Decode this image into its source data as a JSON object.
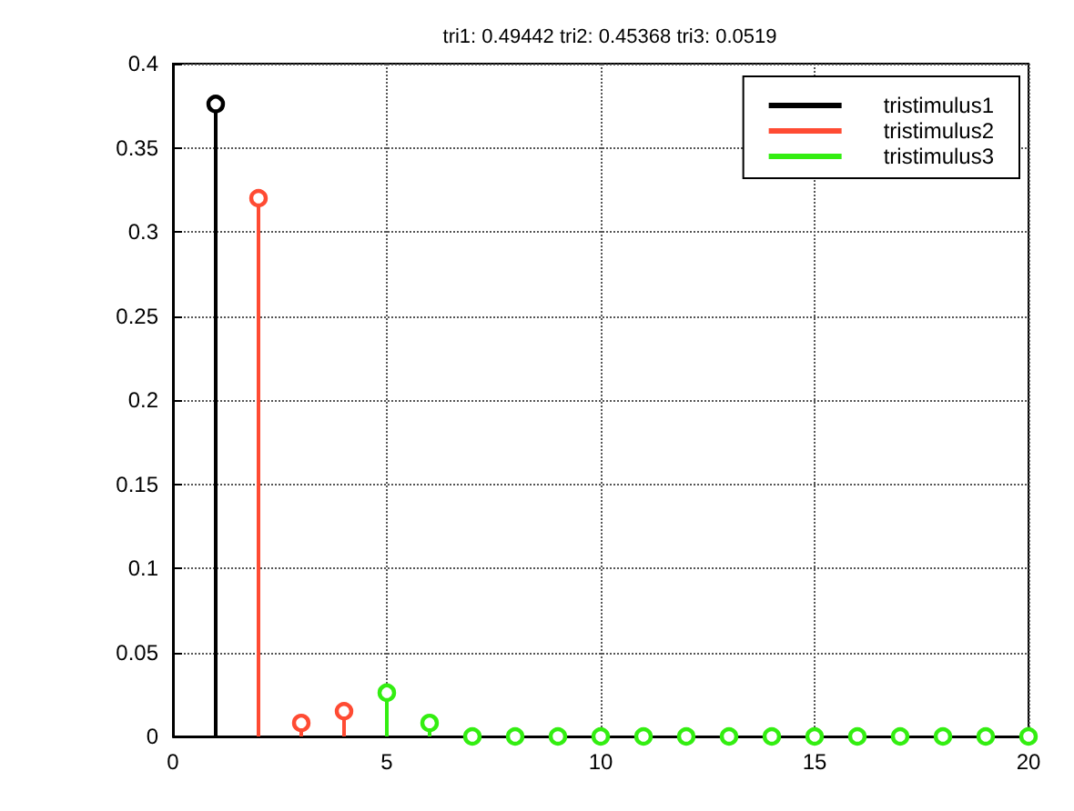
{
  "chart_data": {
    "type": "lollipop",
    "title": "tri1: 0.49442 tri2: 0.45368 tri3: 0.0519",
    "xlim": [
      0,
      20
    ],
    "xticks": [
      0,
      5,
      10,
      15,
      20
    ],
    "ylim": [
      0,
      0.4
    ],
    "yticks": [
      0,
      0.05,
      0.1,
      0.15,
      0.2,
      0.25,
      0.3,
      0.35,
      0.4
    ],
    "grid": true,
    "legend": "top right",
    "marker": "circle",
    "series": [
      {
        "name": "tristimulus1",
        "color": "#000000",
        "x": [
          1
        ],
        "values": [
          0.376
        ]
      },
      {
        "name": "tristimulus2",
        "color": "#ff4b33",
        "x": [
          2,
          3,
          4
        ],
        "values": [
          0.32,
          0.008,
          0.015
        ]
      },
      {
        "name": "tristimulus3",
        "color": "#33ee11",
        "x": [
          5,
          6,
          7,
          8,
          9,
          10,
          11,
          12,
          13,
          14,
          15,
          16,
          17,
          18,
          19,
          20
        ],
        "values": [
          0.026,
          0.008,
          0,
          0,
          0,
          0,
          0,
          0,
          0,
          0,
          0,
          0,
          0,
          0,
          0,
          0
        ]
      }
    ]
  }
}
